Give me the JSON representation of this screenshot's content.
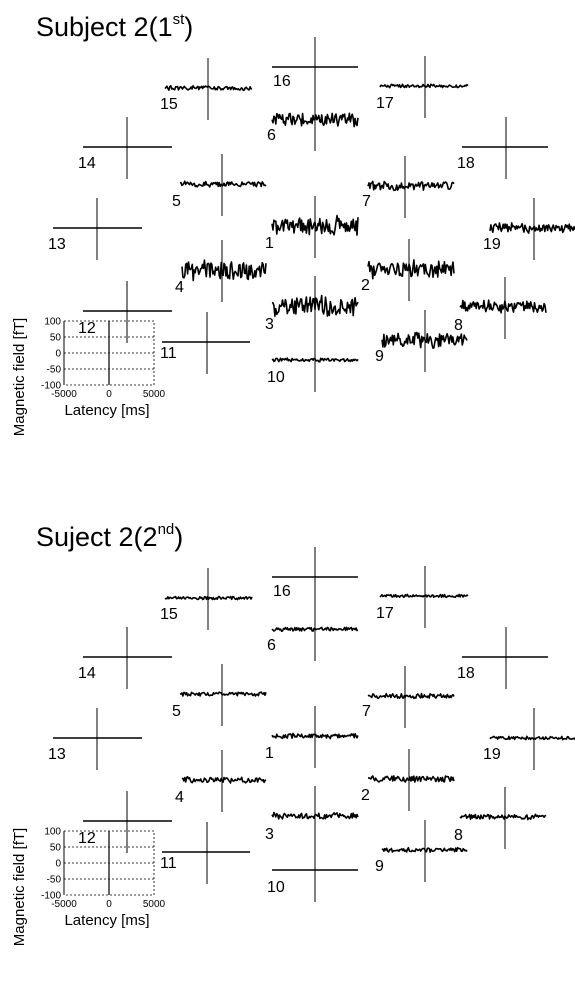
{
  "chart_data": [
    {
      "type": "line",
      "title_main": "Subject 2(1",
      "title_sup": "st",
      "title_close": ")",
      "xlabel": "Latency [ms]",
      "ylabel": "Magnetic field [fT]",
      "xlim": [
        -5000,
        5000
      ],
      "ylim": [
        -100,
        100
      ],
      "xticks": [
        "-5000",
        "0",
        "5000"
      ],
      "yticks": [
        "100",
        "50",
        "0",
        "-50",
        "-100"
      ],
      "grid": true,
      "channels": [
        {
          "label": "1",
          "amplitude": 30
        },
        {
          "label": "2",
          "amplitude": 28
        },
        {
          "label": "3",
          "amplitude": 32
        },
        {
          "label": "4",
          "amplitude": 30
        },
        {
          "label": "5",
          "amplitude": 9
        },
        {
          "label": "6",
          "amplitude": 22
        },
        {
          "label": "7",
          "amplitude": 14
        },
        {
          "label": "8",
          "amplitude": 20
        },
        {
          "label": "9",
          "amplitude": 25
        },
        {
          "label": "10",
          "amplitude": 6
        },
        {
          "label": "11",
          "amplitude": 0
        },
        {
          "label": "12",
          "amplitude": 0
        },
        {
          "label": "13",
          "amplitude": 0
        },
        {
          "label": "14",
          "amplitude": 0
        },
        {
          "label": "15",
          "amplitude": 7
        },
        {
          "label": "16",
          "amplitude": 0
        },
        {
          "label": "17",
          "amplitude": 5
        },
        {
          "label": "18",
          "amplitude": 0
        },
        {
          "label": "19",
          "amplitude": 15
        }
      ]
    },
    {
      "type": "line",
      "title_main": "Suject 2(2",
      "title_sup": "nd",
      "title_close": ")",
      "xlabel": "Latency [ms]",
      "ylabel": "Magnetic field [fT]",
      "xlim": [
        -5000,
        5000
      ],
      "ylim": [
        -100,
        100
      ],
      "xticks": [
        "-5000",
        "0",
        "5000"
      ],
      "yticks": [
        "100",
        "50",
        "0",
        "-50",
        "-100"
      ],
      "grid": true,
      "channels": [
        {
          "label": "1",
          "amplitude": 8
        },
        {
          "label": "2",
          "amplitude": 10
        },
        {
          "label": "3",
          "amplitude": 10
        },
        {
          "label": "4",
          "amplitude": 9
        },
        {
          "label": "5",
          "amplitude": 6
        },
        {
          "label": "6",
          "amplitude": 7
        },
        {
          "label": "7",
          "amplitude": 8
        },
        {
          "label": "8",
          "amplitude": 8
        },
        {
          "label": "9",
          "amplitude": 7
        },
        {
          "label": "10",
          "amplitude": 0
        },
        {
          "label": "11",
          "amplitude": 0
        },
        {
          "label": "12",
          "amplitude": 0
        },
        {
          "label": "13",
          "amplitude": 0
        },
        {
          "label": "14",
          "amplitude": 0
        },
        {
          "label": "15",
          "amplitude": 5
        },
        {
          "label": "16",
          "amplitude": 0
        },
        {
          "label": "17",
          "amplitude": 5
        },
        {
          "label": "18",
          "amplitude": 0
        },
        {
          "label": "19",
          "amplitude": 5
        }
      ]
    }
  ]
}
